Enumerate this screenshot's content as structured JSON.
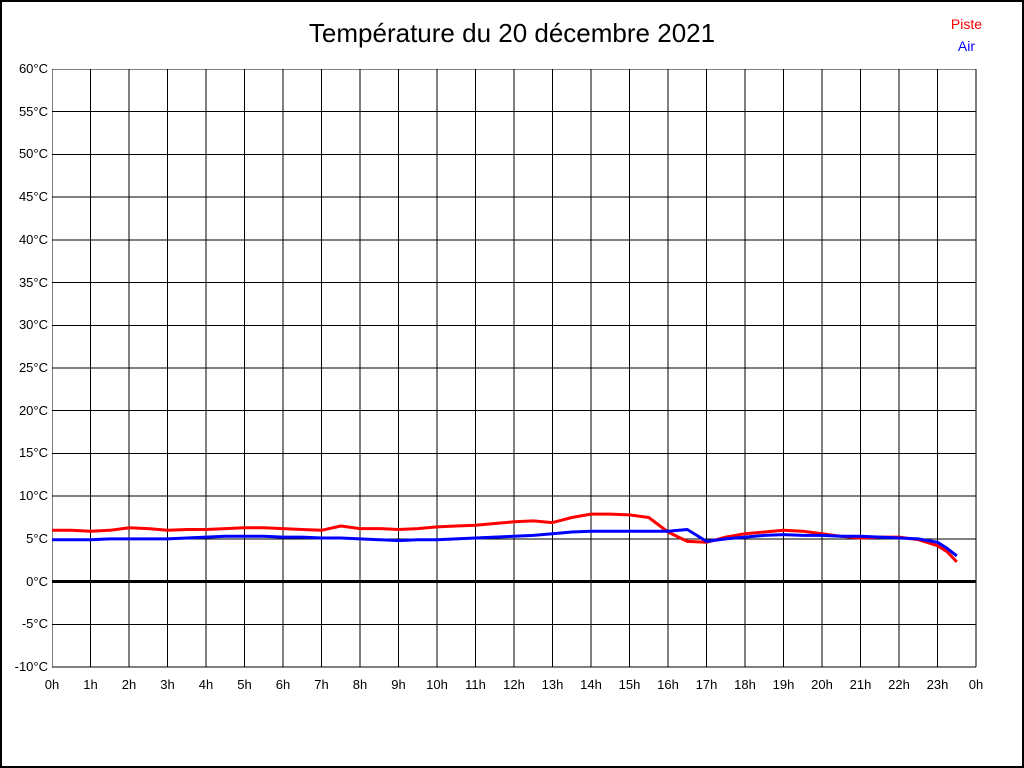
{
  "chart_data": {
    "type": "line",
    "title": "Température du 20 décembre 2021",
    "grid": true,
    "zero_line": true,
    "legend_position": "top-right",
    "background_color": "#ffffff",
    "grid_color": "#000000",
    "zero_line_color": "#000000",
    "x_axis": {
      "range": [
        0,
        24
      ],
      "tick_values": [
        0,
        1,
        2,
        3,
        4,
        5,
        6,
        7,
        8,
        9,
        10,
        11,
        12,
        13,
        14,
        15,
        16,
        17,
        18,
        19,
        20,
        21,
        22,
        23,
        24
      ],
      "tick_labels": [
        "0h",
        "1h",
        "2h",
        "3h",
        "4h",
        "5h",
        "6h",
        "7h",
        "8h",
        "9h",
        "10h",
        "11h",
        "12h",
        "13h",
        "14h",
        "15h",
        "16h",
        "17h",
        "18h",
        "19h",
        "20h",
        "21h",
        "22h",
        "23h",
        "0h"
      ]
    },
    "y_axis": {
      "range": [
        -10,
        60
      ],
      "tick_values": [
        60,
        55,
        50,
        45,
        40,
        35,
        30,
        25,
        20,
        15,
        10,
        5,
        0,
        -5,
        -10
      ],
      "tick_labels": [
        "60°C",
        "55°C",
        "50°C",
        "45°C",
        "40°C",
        "35°C",
        "30°C",
        "25°C",
        "20°C",
        "15°C",
        "10°C",
        "5°C",
        "0°C",
        "-5°C",
        "-10°C"
      ]
    },
    "series": [
      {
        "name": "Piste",
        "color": "#ff0000",
        "points": [
          [
            0,
            6.0
          ],
          [
            0.5,
            6.0
          ],
          [
            1,
            5.9
          ],
          [
            1.5,
            6.0
          ],
          [
            2,
            6.3
          ],
          [
            2.5,
            6.2
          ],
          [
            3,
            6.0
          ],
          [
            3.5,
            6.1
          ],
          [
            4,
            6.1
          ],
          [
            4.5,
            6.2
          ],
          [
            5,
            6.3
          ],
          [
            5.5,
            6.3
          ],
          [
            6,
            6.2
          ],
          [
            6.5,
            6.1
          ],
          [
            7,
            6.0
          ],
          [
            7.5,
            6.5
          ],
          [
            8,
            6.2
          ],
          [
            8.5,
            6.2
          ],
          [
            9,
            6.1
          ],
          [
            9.5,
            6.2
          ],
          [
            10,
            6.4
          ],
          [
            10.5,
            6.5
          ],
          [
            11,
            6.6
          ],
          [
            11.5,
            6.8
          ],
          [
            12,
            7.0
          ],
          [
            12.5,
            7.1
          ],
          [
            13,
            6.9
          ],
          [
            13.5,
            7.5
          ],
          [
            14,
            7.9
          ],
          [
            14.5,
            7.9
          ],
          [
            15,
            7.8
          ],
          [
            15.5,
            7.5
          ],
          [
            16,
            5.8
          ],
          [
            16.5,
            4.7
          ],
          [
            17,
            4.6
          ],
          [
            17.5,
            5.2
          ],
          [
            18,
            5.6
          ],
          [
            18.5,
            5.8
          ],
          [
            19,
            6.0
          ],
          [
            19.5,
            5.9
          ],
          [
            20,
            5.6
          ],
          [
            20.5,
            5.3
          ],
          [
            21,
            5.1
          ],
          [
            21.5,
            5.2
          ],
          [
            22,
            5.2
          ],
          [
            22.5,
            4.9
          ],
          [
            23,
            4.2
          ],
          [
            23.25,
            3.5
          ],
          [
            23.5,
            2.3
          ]
        ]
      },
      {
        "name": "Air",
        "color": "#0000ff",
        "points": [
          [
            0,
            4.9
          ],
          [
            0.5,
            4.9
          ],
          [
            1,
            4.9
          ],
          [
            1.5,
            5.0
          ],
          [
            2,
            5.0
          ],
          [
            2.5,
            5.0
          ],
          [
            3,
            5.0
          ],
          [
            3.5,
            5.1
          ],
          [
            4,
            5.2
          ],
          [
            4.5,
            5.3
          ],
          [
            5,
            5.3
          ],
          [
            5.5,
            5.3
          ],
          [
            6,
            5.2
          ],
          [
            6.5,
            5.2
          ],
          [
            7,
            5.1
          ],
          [
            7.5,
            5.1
          ],
          [
            8,
            5.0
          ],
          [
            8.5,
            4.9
          ],
          [
            9,
            4.8
          ],
          [
            9.5,
            4.9
          ],
          [
            10,
            4.9
          ],
          [
            10.5,
            5.0
          ],
          [
            11,
            5.1
          ],
          [
            11.5,
            5.2
          ],
          [
            12,
            5.3
          ],
          [
            12.5,
            5.4
          ],
          [
            13,
            5.6
          ],
          [
            13.5,
            5.8
          ],
          [
            14,
            5.9
          ],
          [
            14.5,
            5.9
          ],
          [
            15,
            5.9
          ],
          [
            15.5,
            5.9
          ],
          [
            16,
            5.9
          ],
          [
            16.5,
            6.1
          ],
          [
            17,
            4.7
          ],
          [
            17.5,
            5.0
          ],
          [
            18,
            5.2
          ],
          [
            18.5,
            5.4
          ],
          [
            19,
            5.5
          ],
          [
            19.5,
            5.4
          ],
          [
            20,
            5.4
          ],
          [
            20.5,
            5.3
          ],
          [
            21,
            5.3
          ],
          [
            21.5,
            5.2
          ],
          [
            22,
            5.1
          ],
          [
            22.5,
            5.0
          ],
          [
            23,
            4.6
          ],
          [
            23.25,
            3.9
          ],
          [
            23.5,
            3.0
          ]
        ]
      }
    ]
  }
}
